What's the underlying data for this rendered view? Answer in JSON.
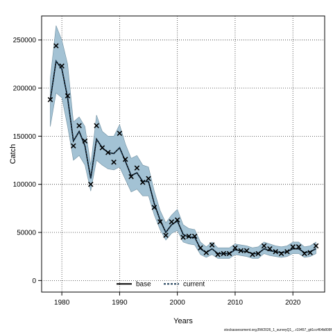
{
  "chart_data": {
    "type": "line",
    "title": "",
    "xlabel": "Years",
    "ylabel": "Catch",
    "xlim": [
      1976.5,
      2025.5
    ],
    "ylim": [
      -12000,
      275000
    ],
    "x_ticks": [
      1980,
      1990,
      2000,
      2010,
      2020
    ],
    "y_ticks": [
      0,
      50000,
      100000,
      150000,
      200000,
      250000
    ],
    "grid": true,
    "legend": {
      "placement": "bottom-center",
      "entries": [
        "base",
        "current"
      ]
    },
    "colors": {
      "band": "#a3c2d4",
      "band_stroke": "#6f8fa0",
      "base": "#000000",
      "current": "#1a3a55",
      "observed": "#000000"
    },
    "x": [
      1978,
      1979,
      1980,
      1981,
      1982,
      1983,
      1984,
      1985,
      1986,
      1987,
      1988,
      1989,
      1990,
      1991,
      1992,
      1993,
      1994,
      1995,
      1996,
      1997,
      1998,
      1999,
      2000,
      2001,
      2002,
      2003,
      2004,
      2005,
      2006,
      2007,
      2008,
      2009,
      2010,
      2011,
      2012,
      2013,
      2014,
      2015,
      2016,
      2017,
      2018,
      2019,
      2020,
      2021,
      2022,
      2023,
      2024
    ],
    "series": [
      {
        "name": "base",
        "values": [
          188000,
          228000,
          220000,
          190000,
          145000,
          155000,
          140000,
          106000,
          147000,
          138000,
          133000,
          132000,
          138000,
          124000,
          109000,
          112000,
          103000,
          103000,
          80000,
          63000,
          50000,
          58000,
          62000,
          48000,
          45000,
          45000,
          33000,
          29000,
          33000,
          28000,
          28000,
          28000,
          32000,
          31000,
          30000,
          28000,
          28000,
          33000,
          31000,
          30000,
          29000,
          30000,
          33000,
          33000,
          29000,
          30000,
          33000
        ]
      },
      {
        "name": "current",
        "values": [
          188000,
          228000,
          220000,
          190000,
          145000,
          155000,
          140000,
          106000,
          147000,
          138000,
          133000,
          132000,
          138000,
          124000,
          109000,
          112000,
          103000,
          103000,
          80000,
          63000,
          50000,
          58000,
          62000,
          48000,
          45000,
          45000,
          33000,
          29000,
          33000,
          28000,
          28000,
          28000,
          32000,
          31000,
          30000,
          28000,
          28000,
          33000,
          31000,
          30000,
          29000,
          30000,
          33000,
          33000,
          29000,
          30000,
          33000
        ]
      }
    ],
    "band_upper": [
      210000,
      265000,
      250000,
      225000,
      165000,
      170000,
      160000,
      120000,
      172000,
      155000,
      150000,
      150000,
      162000,
      142000,
      127000,
      130000,
      120000,
      118000,
      93000,
      73000,
      60000,
      68000,
      74000,
      58000,
      54000,
      53000,
      40000,
      35000,
      40000,
      34000,
      34000,
      34000,
      38000,
      37000,
      36000,
      34000,
      35000,
      40000,
      38000,
      36000,
      35000,
      36000,
      40000,
      40000,
      35000,
      36000,
      40000
    ],
    "band_lower": [
      160000,
      195000,
      190000,
      160000,
      125000,
      130000,
      120000,
      93000,
      125000,
      120000,
      116000,
      115000,
      118000,
      105000,
      92000,
      95000,
      88000,
      88000,
      68000,
      53000,
      42000,
      49000,
      52000,
      40000,
      38000,
      37000,
      27000,
      24000,
      27000,
      23000,
      23000,
      23000,
      27000,
      26000,
      25000,
      23000,
      23000,
      28000,
      26000,
      25000,
      24000,
      25000,
      28000,
      28000,
      24000,
      25000,
      28000
    ],
    "observed": [
      188000,
      244000,
      223000,
      192000,
      140000,
      161000,
      145000,
      100000,
      161000,
      138000,
      133000,
      123000,
      153000,
      126000,
      108000,
      117000,
      102000,
      106000,
      76000,
      61000,
      47000,
      61000,
      63000,
      45000,
      46000,
      46000,
      34000,
      29000,
      37000,
      27000,
      28000,
      28000,
      34000,
      31000,
      31000,
      27000,
      28000,
      36000,
      33000,
      30000,
      28000,
      30000,
      35000,
      35000,
      28000,
      29000,
      36000
    ]
  },
  "footer": "stockassessment.org,BW2026_1_surveyQ1_..r19457_git1cc464b808f"
}
